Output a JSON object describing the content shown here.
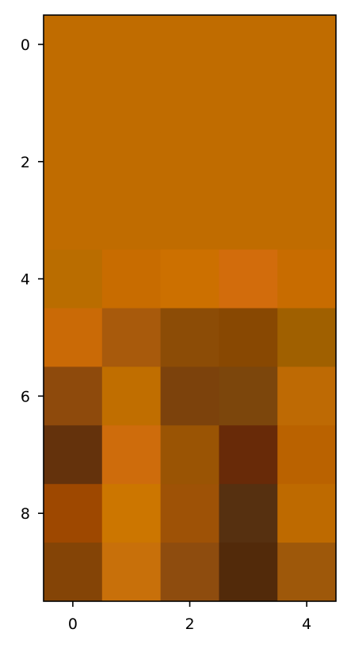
{
  "chart_data": {
    "type": "heatmap",
    "title": "",
    "xlabel": "",
    "ylabel": "",
    "x_ticks": [
      0,
      2,
      4
    ],
    "y_ticks": [
      0,
      2,
      4,
      6,
      8
    ],
    "x_range": [
      -0.5,
      4.5
    ],
    "y_range": [
      -0.5,
      9.5
    ],
    "y_inverted": true,
    "grid": false,
    "cells": [
      [
        "#C06C00",
        "#C06C00",
        "#C06C00",
        "#C06C00",
        "#C06C00"
      ],
      [
        "#C06C00",
        "#C06C00",
        "#C06C00",
        "#C06C00",
        "#C06C00"
      ],
      [
        "#C06C00",
        "#C06C00",
        "#C06C00",
        "#C06C00",
        "#C06C00"
      ],
      [
        "#C06C00",
        "#C06C00",
        "#C06C00",
        "#C06C00",
        "#C06C00"
      ],
      [
        "#BA6D00",
        "#C86C00",
        "#CC7000",
        "#D26C0C",
        "#C86C00"
      ],
      [
        "#CA6A06",
        "#A85A0C",
        "#8C4C06",
        "#884802",
        "#A06000"
      ],
      [
        "#8E4A0C",
        "#C06E00",
        "#7C420C",
        "#7C460C",
        "#BE6A04"
      ],
      [
        "#64320C",
        "#CE6C0C",
        "#9A5404",
        "#682A08",
        "#BA6200"
      ],
      [
        "#9E4800",
        "#CC7600",
        "#9E5206",
        "#563010",
        "#BE6A00"
      ],
      [
        "#844406",
        "#C8700A",
        "#8E4C0E",
        "#522A0A",
        "#9E580A"
      ]
    ]
  }
}
